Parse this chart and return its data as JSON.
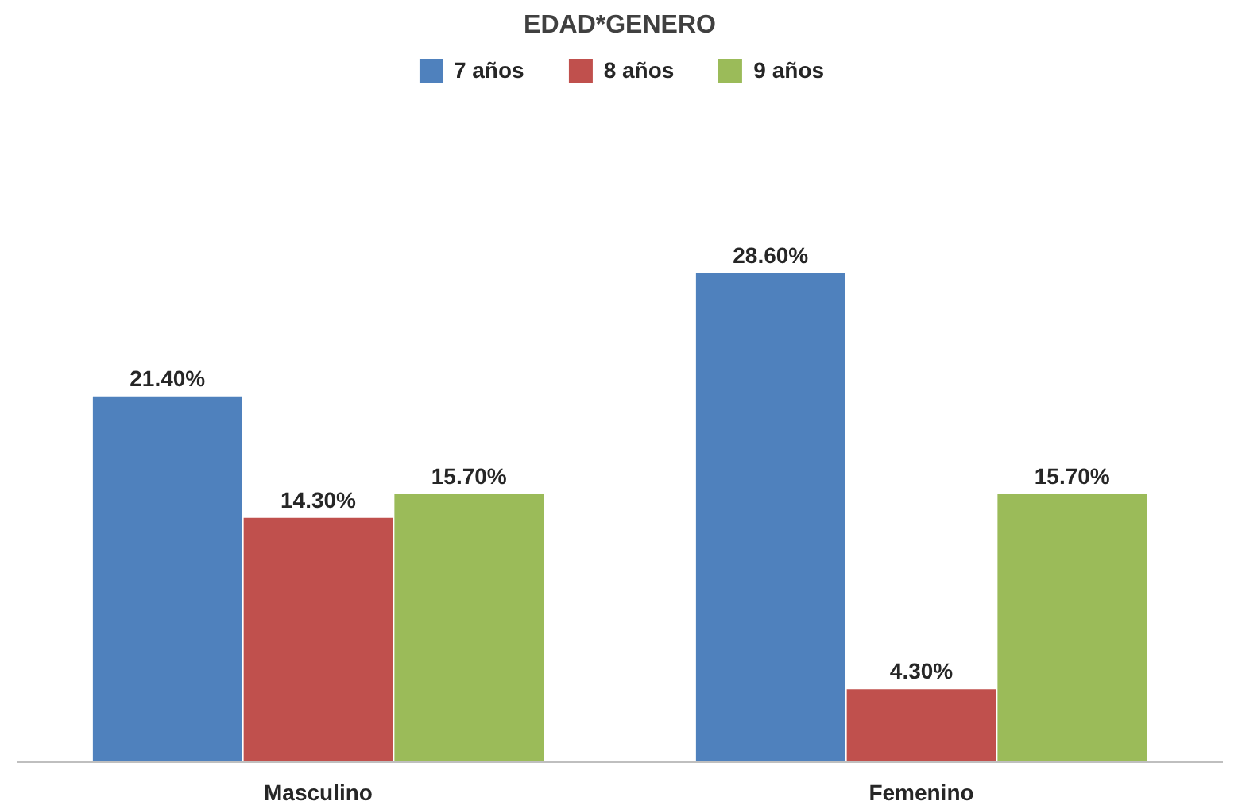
{
  "chart_data": {
    "type": "bar",
    "title": "EDAD*GENERO",
    "categories": [
      "Masculino",
      "Femenino"
    ],
    "series": [
      {
        "name": "7 años",
        "color": "#4f81bd",
        "values": [
          21.4,
          28.6
        ],
        "value_labels": [
          "21.40%",
          "28.60%"
        ]
      },
      {
        "name": "8 años",
        "color": "#c0504d",
        "values": [
          14.3,
          4.3
        ],
        "value_labels": [
          "14.30%",
          "4.30%"
        ]
      },
      {
        "name": "9 años",
        "color": "#9bbb59",
        "values": [
          15.7,
          15.7
        ],
        "value_labels": [
          "15.70%",
          "15.70%"
        ]
      }
    ],
    "legend": "top"
  }
}
